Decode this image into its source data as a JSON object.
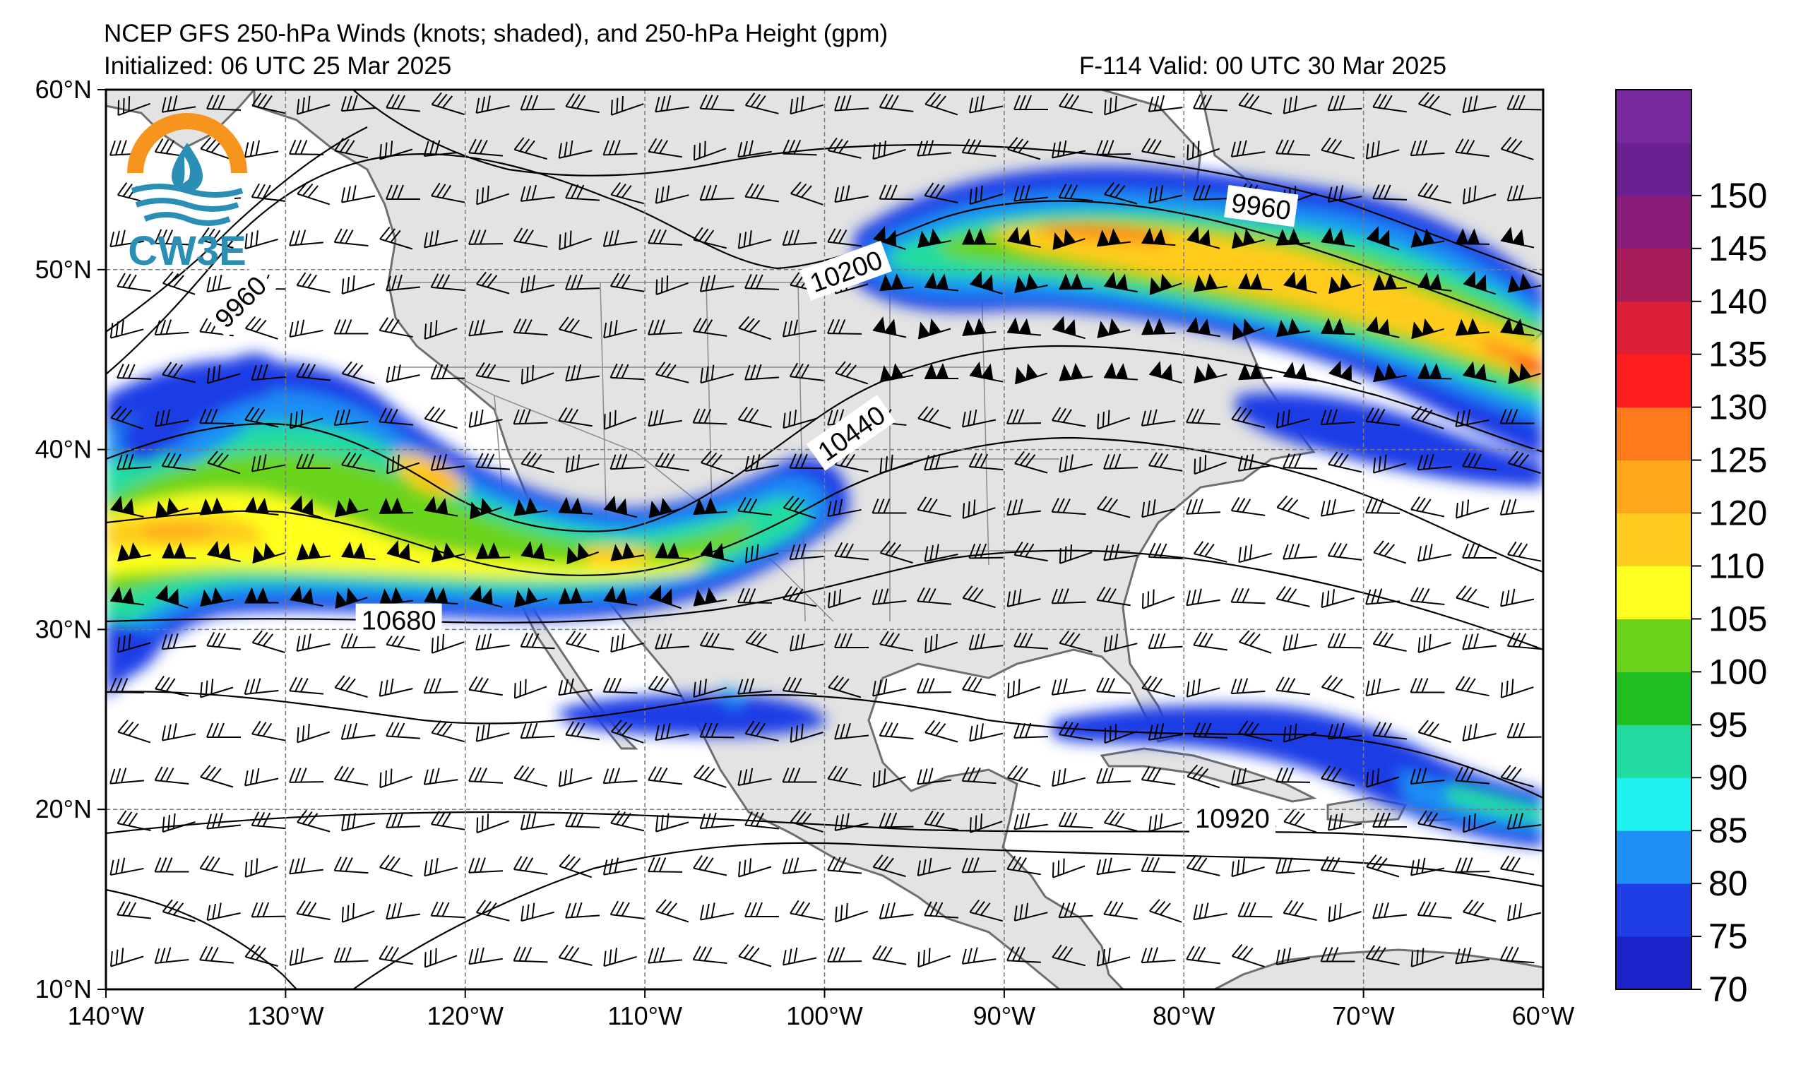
{
  "header": {
    "title": "NCEP GFS 250-hPa Winds (knots; shaded), and 250-hPa Height (gpm)",
    "initialized": "Initialized: 06 UTC 25 Mar 2025",
    "valid": "F-114  Valid: 00 UTC 30 Mar 2025"
  },
  "logo": {
    "text": "CW3E",
    "colors": {
      "ring": "#f7941d",
      "water": "#2b8fb5",
      "drop": "#2b8fb5"
    }
  },
  "map": {
    "lon_range": [
      -140,
      -60
    ],
    "lat_range": [
      10,
      60
    ],
    "lon_ticks": [
      {
        "value": -140,
        "label": "140°W"
      },
      {
        "value": -130,
        "label": "130°W"
      },
      {
        "value": -120,
        "label": "120°W"
      },
      {
        "value": -110,
        "label": "110°W"
      },
      {
        "value": -100,
        "label": "100°W"
      },
      {
        "value": -90,
        "label": "90°W"
      },
      {
        "value": -80,
        "label": "80°W"
      },
      {
        "value": -70,
        "label": "70°W"
      },
      {
        "value": -60,
        "label": "60°W"
      }
    ],
    "lat_ticks": [
      {
        "value": 60,
        "label": "60°N"
      },
      {
        "value": 50,
        "label": "50°N"
      },
      {
        "value": 40,
        "label": "40°N"
      },
      {
        "value": 30,
        "label": "30°N"
      },
      {
        "value": 20,
        "label": "20°N"
      },
      {
        "value": 10,
        "label": "10°N"
      }
    ],
    "grid": true,
    "land_color": "#e3e3e3",
    "height_contour_labels": [
      {
        "label": "9960",
        "lon": -132.5,
        "lat": 48.2,
        "rotate": -45
      },
      {
        "label": "9960",
        "lon": -75.7,
        "lat": 53.5,
        "rotate": 8
      },
      {
        "label": "10200",
        "lon": -98.8,
        "lat": 49.9,
        "rotate": -20
      },
      {
        "label": "10440",
        "lon": -98.5,
        "lat": 40.9,
        "rotate": -35
      },
      {
        "label": "10680",
        "lon": -123.7,
        "lat": 30.5,
        "rotate": 0
      },
      {
        "label": "10920",
        "lon": -77.3,
        "lat": 19.5,
        "rotate": 0
      }
    ]
  },
  "colorbar": {
    "min": 70,
    "max": 155,
    "colors": [
      "#1a22c8",
      "#1f3ee6",
      "#1e8ff5",
      "#1ff0f0",
      "#22dba0",
      "#1fbf1f",
      "#6ad41c",
      "#ffff1f",
      "#ffcc1f",
      "#ffa61a",
      "#ff7a1a",
      "#ff1f1f",
      "#dd1f35",
      "#a81c5a",
      "#8a1d7a",
      "#6b2091",
      "#7a2aa0"
    ],
    "labels": [
      "70",
      "75",
      "80",
      "85",
      "90",
      "95",
      "100",
      "105",
      "110",
      "120",
      "125",
      "130",
      "135",
      "140",
      "145",
      "150"
    ]
  }
}
